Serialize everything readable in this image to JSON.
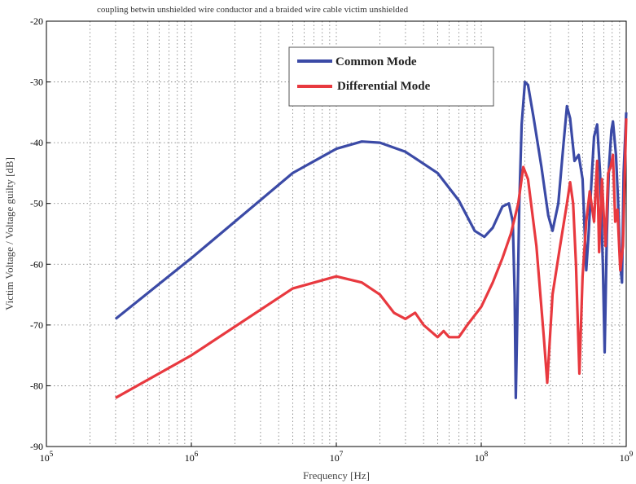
{
  "chart_data": {
    "type": "line",
    "title": "coupling betwin unshielded wire conductor and a braided  wire cable victim unshielded",
    "xlabel": "Frequency [Hz]",
    "ylabel": "Victim Voltage / Voltage guilty   [dB]",
    "xscale": "log",
    "xlim": [
      100000,
      1000000000
    ],
    "ylim": [
      -90,
      -20
    ],
    "x_tick_labels": [
      {
        "base": "10",
        "exp": "5"
      },
      {
        "base": "10",
        "exp": "6"
      },
      {
        "base": "10",
        "exp": "7"
      },
      {
        "base": "10",
        "exp": "8"
      },
      {
        "base": "10",
        "exp": "9"
      }
    ],
    "y_ticks": [
      -20,
      -30,
      -40,
      -50,
      -60,
      -70,
      -80,
      -90
    ],
    "grid": true,
    "legend_position": "top-center",
    "series": [
      {
        "name": "Common Mode",
        "color": "#3b4aa6",
        "points": [
          [
            300000,
            -69
          ],
          [
            1000000,
            -59
          ],
          [
            5000000,
            -45
          ],
          [
            10000000,
            -41
          ],
          [
            15000000,
            -39.8
          ],
          [
            20000000,
            -40
          ],
          [
            30000000,
            -41.5
          ],
          [
            50000000,
            -45
          ],
          [
            70000000,
            -49.5
          ],
          [
            90000000,
            -54.5
          ],
          [
            105000000,
            -55.5
          ],
          [
            120000000,
            -54
          ],
          [
            140000000,
            -50.5
          ],
          [
            155000000,
            -50
          ],
          [
            165000000,
            -53
          ],
          [
            170000000,
            -65
          ],
          [
            173000000,
            -82
          ],
          [
            177000000,
            -70
          ],
          [
            183000000,
            -50
          ],
          [
            190000000,
            -37
          ],
          [
            200000000,
            -30
          ],
          [
            210000000,
            -30.5
          ],
          [
            230000000,
            -36
          ],
          [
            260000000,
            -44
          ],
          [
            290000000,
            -52
          ],
          [
            310000000,
            -54.5
          ],
          [
            340000000,
            -50
          ],
          [
            370000000,
            -40
          ],
          [
            390000000,
            -34
          ],
          [
            410000000,
            -36
          ],
          [
            440000000,
            -43
          ],
          [
            470000000,
            -42
          ],
          [
            500000000,
            -46
          ],
          [
            530000000,
            -61
          ],
          [
            550000000,
            -55
          ],
          [
            580000000,
            -45
          ],
          [
            600000000,
            -39
          ],
          [
            630000000,
            -37
          ],
          [
            660000000,
            -45
          ],
          [
            690000000,
            -60
          ],
          [
            710000000,
            -74.5
          ],
          [
            735000000,
            -55
          ],
          [
            760000000,
            -44
          ],
          [
            790000000,
            -38
          ],
          [
            810000000,
            -36.5
          ],
          [
            850000000,
            -42
          ],
          [
            880000000,
            -50
          ],
          [
            910000000,
            -60
          ],
          [
            935000000,
            -63
          ],
          [
            960000000,
            -45
          ],
          [
            1000000000,
            -35
          ]
        ]
      },
      {
        "name": "Differential Mode",
        "color": "#e8393f",
        "points": [
          [
            300000,
            -82
          ],
          [
            1000000,
            -75
          ],
          [
            5000000,
            -64
          ],
          [
            10000000,
            -62
          ],
          [
            15000000,
            -63
          ],
          [
            20000000,
            -65
          ],
          [
            25000000,
            -68
          ],
          [
            30000000,
            -69
          ],
          [
            35000000,
            -68
          ],
          [
            40000000,
            -70
          ],
          [
            50000000,
            -72
          ],
          [
            55000000,
            -71
          ],
          [
            60000000,
            -72
          ],
          [
            70000000,
            -72
          ],
          [
            80000000,
            -70
          ],
          [
            100000000,
            -67
          ],
          [
            120000000,
            -63
          ],
          [
            140000000,
            -59
          ],
          [
            160000000,
            -55
          ],
          [
            180000000,
            -50
          ],
          [
            195000000,
            -44
          ],
          [
            210000000,
            -46
          ],
          [
            240000000,
            -57
          ],
          [
            270000000,
            -72
          ],
          [
            285000000,
            -79.5
          ],
          [
            310000000,
            -65
          ],
          [
            350000000,
            -57
          ],
          [
            390000000,
            -50
          ],
          [
            410000000,
            -46.5
          ],
          [
            430000000,
            -50
          ],
          [
            450000000,
            -60
          ],
          [
            475000000,
            -78
          ],
          [
            500000000,
            -62
          ],
          [
            530000000,
            -53
          ],
          [
            560000000,
            -48
          ],
          [
            600000000,
            -53
          ],
          [
            630000000,
            -43
          ],
          [
            650000000,
            -58
          ],
          [
            680000000,
            -46
          ],
          [
            700000000,
            -52
          ],
          [
            720000000,
            -57
          ],
          [
            750000000,
            -45
          ],
          [
            780000000,
            -44
          ],
          [
            810000000,
            -42
          ],
          [
            840000000,
            -53
          ],
          [
            870000000,
            -51
          ],
          [
            910000000,
            -61
          ],
          [
            950000000,
            -57
          ],
          [
            1000000000,
            -36
          ]
        ]
      }
    ]
  }
}
